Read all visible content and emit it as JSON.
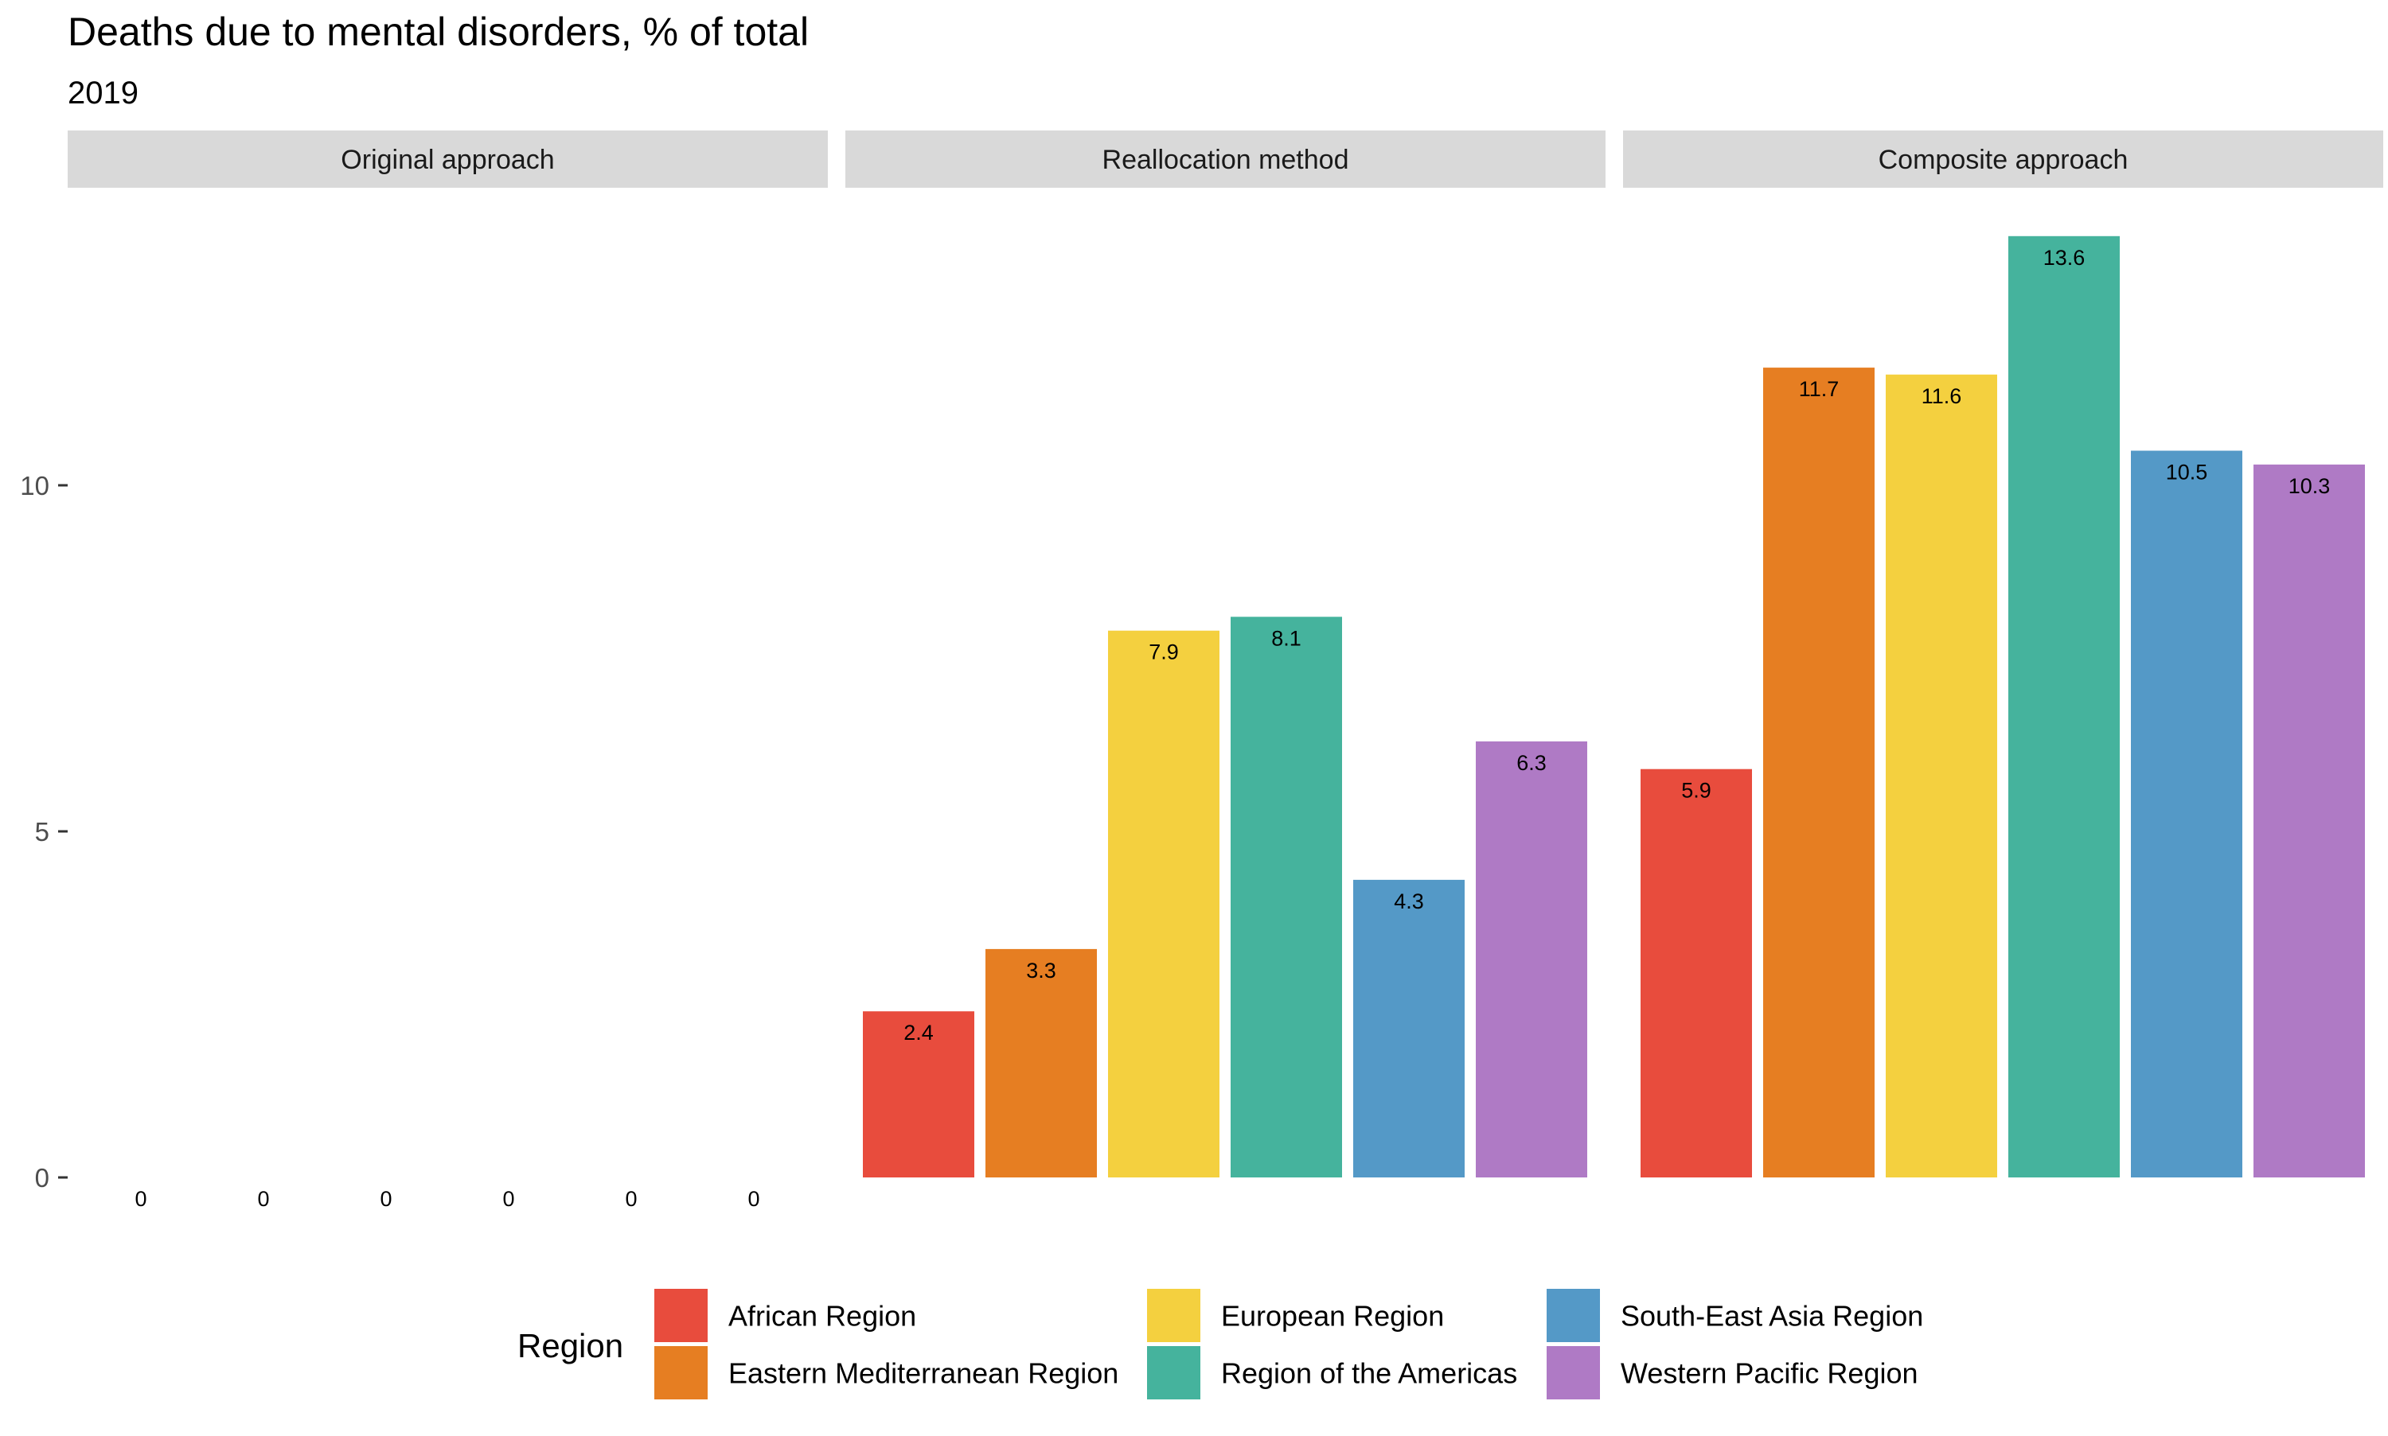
{
  "chart_data": {
    "type": "bar",
    "title": "Deaths due to mental disorders, % of total",
    "subtitle": "2019",
    "xlabel": "",
    "ylabel": "",
    "ylim": [
      0,
      14.3
    ],
    "y_ticks": [
      0,
      5,
      10
    ],
    "y_tick_labels": [
      "0",
      "5",
      "10"
    ],
    "grid": false,
    "facets": [
      "Original approach",
      "Reallocation method",
      "Composite approach"
    ],
    "categories": [
      "African Region",
      "Eastern Mediterranean Region",
      "European Region",
      "Region of the Americas",
      "South-East Asia Region",
      "Western Pacific Region"
    ],
    "series": [
      {
        "facet": "Original approach",
        "values": [
          0,
          0,
          0,
          0,
          0,
          0
        ],
        "labels": [
          "0",
          "0",
          "0",
          "0",
          "0",
          "0"
        ]
      },
      {
        "facet": "Reallocation method",
        "values": [
          2.4,
          3.3,
          7.9,
          8.1,
          4.3,
          6.3
        ],
        "labels": [
          "2.4",
          "3.3",
          "7.9",
          "8.1",
          "4.3",
          "6.3"
        ]
      },
      {
        "facet": "Composite approach",
        "values": [
          5.9,
          11.7,
          11.6,
          13.6,
          10.5,
          10.3
        ],
        "labels": [
          "5.9",
          "11.7",
          "11.6",
          "13.6",
          "10.5",
          "10.3"
        ]
      }
    ],
    "colors": [
      "#e84c3d",
      "#e67e22",
      "#f4d03f",
      "#45b39d",
      "#5499c7",
      "#af7ac5"
    ],
    "legend": {
      "title": "Region",
      "position": "bottom",
      "items": [
        "African Region",
        "Eastern Mediterranean Region",
        "European Region",
        "Region of the Americas",
        "South-East Asia Region",
        "Western Pacific Region"
      ]
    }
  }
}
